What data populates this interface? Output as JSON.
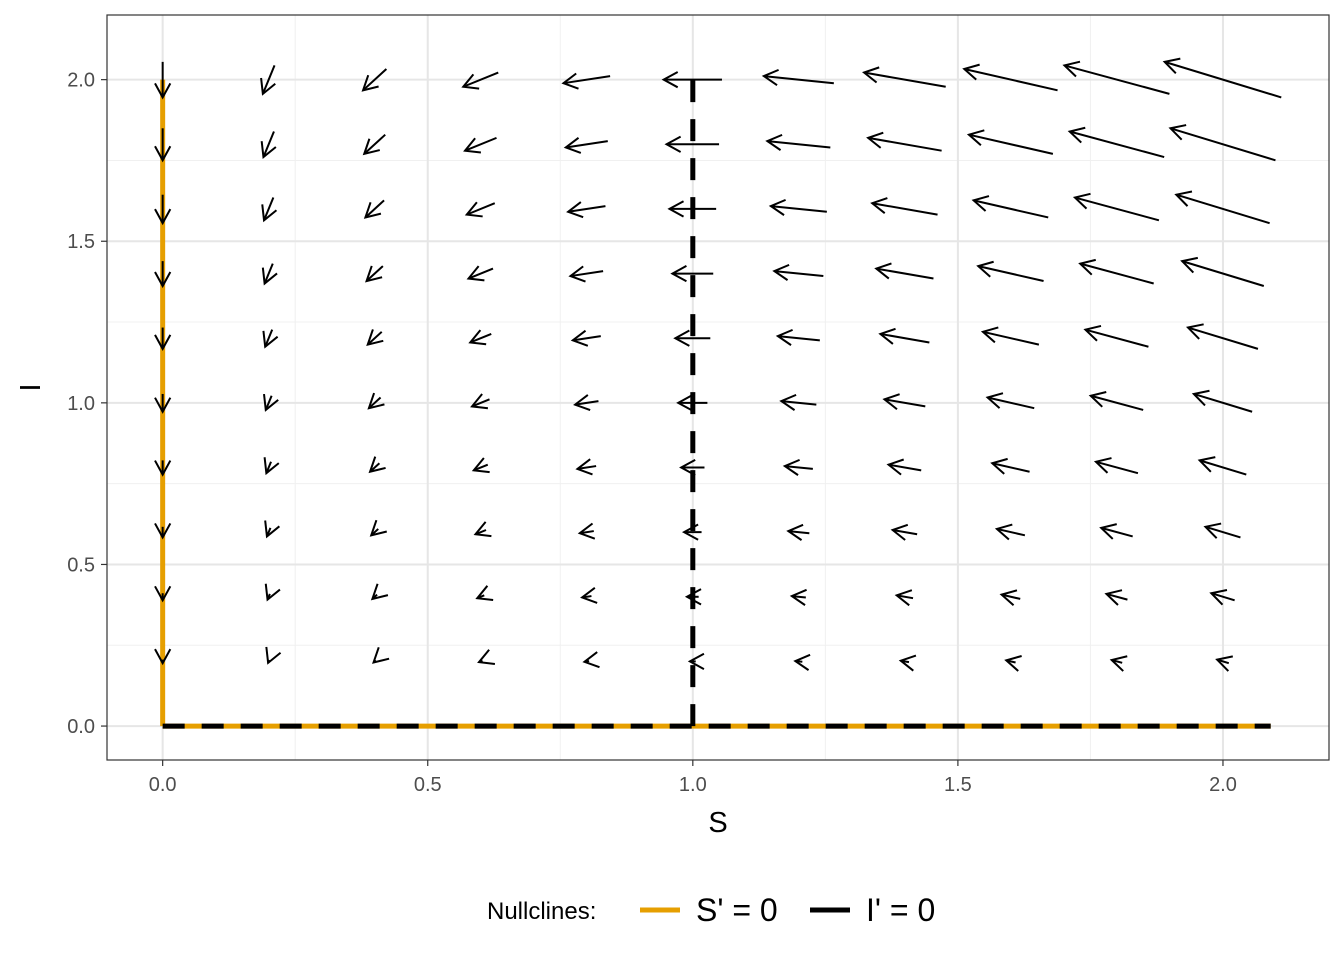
{
  "chart_data": {
    "type": "vector-field",
    "xlabel": "S",
    "ylabel": "I",
    "xlim": [
      -0.105,
      2.2
    ],
    "ylim": [
      -0.105,
      2.2
    ],
    "x_ticks": [
      0.0,
      0.5,
      1.0,
      1.5,
      2.0
    ],
    "y_ticks": [
      0.0,
      0.5,
      1.0,
      1.5,
      2.0
    ],
    "x_tick_labels": [
      "0.0",
      "0.5",
      "1.0",
      "1.5",
      "2.0"
    ],
    "y_tick_labels": [
      "0.0",
      "0.5",
      "1.0",
      "1.5",
      "2.0"
    ],
    "grid": true,
    "model": {
      "ds_dt": "-S*I",
      "di_dt": "S*I - I"
    },
    "field_grid": {
      "s_values": [
        0.0,
        0.2,
        0.4,
        0.6,
        0.8,
        1.0,
        1.2,
        1.4,
        1.6,
        1.8,
        2.0
      ],
      "i_values": [
        0.0,
        0.2,
        0.4,
        0.6,
        0.8,
        1.0,
        1.2,
        1.4,
        1.6,
        1.8,
        2.0
      ]
    },
    "nullclines": [
      {
        "name": "S' = 0",
        "color": "#E69F00",
        "dash": "solid",
        "segments": [
          {
            "x": [
              0,
              0
            ],
            "y": [
              0,
              2.0
            ]
          },
          {
            "x": [
              0,
              2.09
            ],
            "y": [
              0,
              0
            ]
          }
        ]
      },
      {
        "name": "I' = 0",
        "color": "#000000",
        "dash": "dashed",
        "segments": [
          {
            "x": [
              1,
              1
            ],
            "y": [
              0,
              2.0
            ]
          },
          {
            "x": [
              0,
              2.09
            ],
            "y": [
              0,
              0
            ]
          }
        ]
      }
    ],
    "legend": {
      "title": "Nullclines:",
      "position": "bottom"
    }
  }
}
